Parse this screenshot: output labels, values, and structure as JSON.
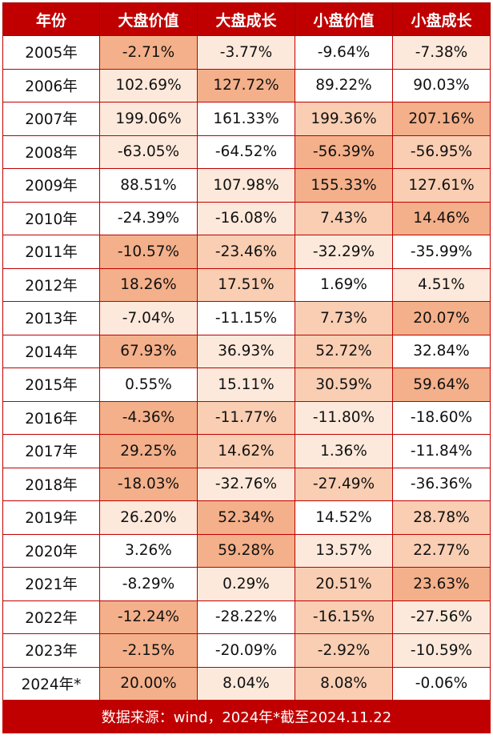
{
  "header": [
    "年份",
    "大盘价值",
    "大盘成长",
    "小盘价值",
    "小盘成长"
  ],
  "footnote": "数据来源：wind，2024年*截至2024.11.22",
  "colors": {
    "header_bg": "#c00000",
    "shade_1": "#ffffff",
    "shade_2": "#fde9db",
    "shade_3": "#f9ceb3",
    "shade_4": "#f4b08a"
  },
  "chart_data": {
    "type": "table",
    "columns": [
      "年份",
      "大盘价值",
      "大盘成长",
      "小盘价值",
      "小盘成长"
    ],
    "rows": [
      {
        "year": "2005年",
        "values": [
          "-2.71%",
          "-3.77%",
          "-9.64%",
          "-7.38%"
        ],
        "shades": [
          4,
          2,
          1,
          2
        ]
      },
      {
        "year": "2006年",
        "values": [
          "102.69%",
          "127.72%",
          "89.22%",
          "90.03%"
        ],
        "shades": [
          2,
          4,
          1,
          1
        ]
      },
      {
        "year": "2007年",
        "values": [
          "199.06%",
          "161.33%",
          "199.36%",
          "207.16%"
        ],
        "shades": [
          2,
          1,
          3,
          4
        ]
      },
      {
        "year": "2008年",
        "values": [
          "-63.05%",
          "-64.52%",
          "-56.39%",
          "-56.95%"
        ],
        "shades": [
          2,
          1,
          4,
          3
        ]
      },
      {
        "year": "2009年",
        "values": [
          "88.51%",
          "107.98%",
          "155.33%",
          "127.61%"
        ],
        "shades": [
          1,
          2,
          4,
          3
        ]
      },
      {
        "year": "2010年",
        "values": [
          "-24.39%",
          "-16.08%",
          "7.43%",
          "14.46%"
        ],
        "shades": [
          1,
          2,
          3,
          4
        ]
      },
      {
        "year": "2011年",
        "values": [
          "-10.57%",
          "-23.46%",
          "-32.29%",
          "-35.99%"
        ],
        "shades": [
          4,
          3,
          2,
          1
        ]
      },
      {
        "year": "2012年",
        "values": [
          "18.26%",
          "17.51%",
          "1.69%",
          "4.51%"
        ],
        "shades": [
          4,
          3,
          1,
          2
        ]
      },
      {
        "year": "2013年",
        "values": [
          "-7.04%",
          "-11.15%",
          "7.73%",
          "20.07%"
        ],
        "shades": [
          2,
          1,
          3,
          4
        ]
      },
      {
        "year": "2014年",
        "values": [
          "67.93%",
          "36.93%",
          "52.72%",
          "32.84%"
        ],
        "shades": [
          4,
          2,
          3,
          1
        ]
      },
      {
        "year": "2015年",
        "values": [
          "0.55%",
          "15.11%",
          "30.59%",
          "59.64%"
        ],
        "shades": [
          1,
          2,
          3,
          4
        ]
      },
      {
        "year": "2016年",
        "values": [
          "-4.36%",
          "-11.77%",
          "-11.80%",
          "-18.60%"
        ],
        "shades": [
          4,
          3,
          2,
          1
        ]
      },
      {
        "year": "2017年",
        "values": [
          "29.25%",
          "14.62%",
          "1.36%",
          "-11.84%"
        ],
        "shades": [
          4,
          3,
          2,
          1
        ]
      },
      {
        "year": "2018年",
        "values": [
          "-18.03%",
          "-32.76%",
          "-27.49%",
          "-36.36%"
        ],
        "shades": [
          4,
          2,
          3,
          1
        ]
      },
      {
        "year": "2019年",
        "values": [
          "26.20%",
          "52.34%",
          "14.52%",
          "28.78%"
        ],
        "shades": [
          2,
          4,
          1,
          3
        ]
      },
      {
        "year": "2020年",
        "values": [
          "3.26%",
          "59.28%",
          "13.57%",
          "22.77%"
        ],
        "shades": [
          1,
          4,
          2,
          3
        ]
      },
      {
        "year": "2021年",
        "values": [
          "-8.29%",
          "0.29%",
          "20.51%",
          "23.63%"
        ],
        "shades": [
          1,
          2,
          3,
          4
        ]
      },
      {
        "year": "2022年",
        "values": [
          "-12.24%",
          "-28.22%",
          "-16.15%",
          "-27.56%"
        ],
        "shades": [
          4,
          1,
          3,
          2
        ]
      },
      {
        "year": "2023年",
        "values": [
          "-2.15%",
          "-20.09%",
          "-2.92%",
          "-10.59%"
        ],
        "shades": [
          4,
          1,
          3,
          2
        ]
      },
      {
        "year": "2024年*",
        "values": [
          "20.00%",
          "8.04%",
          "8.08%",
          "-0.06%"
        ],
        "shades": [
          4,
          2,
          3,
          1
        ]
      }
    ]
  }
}
